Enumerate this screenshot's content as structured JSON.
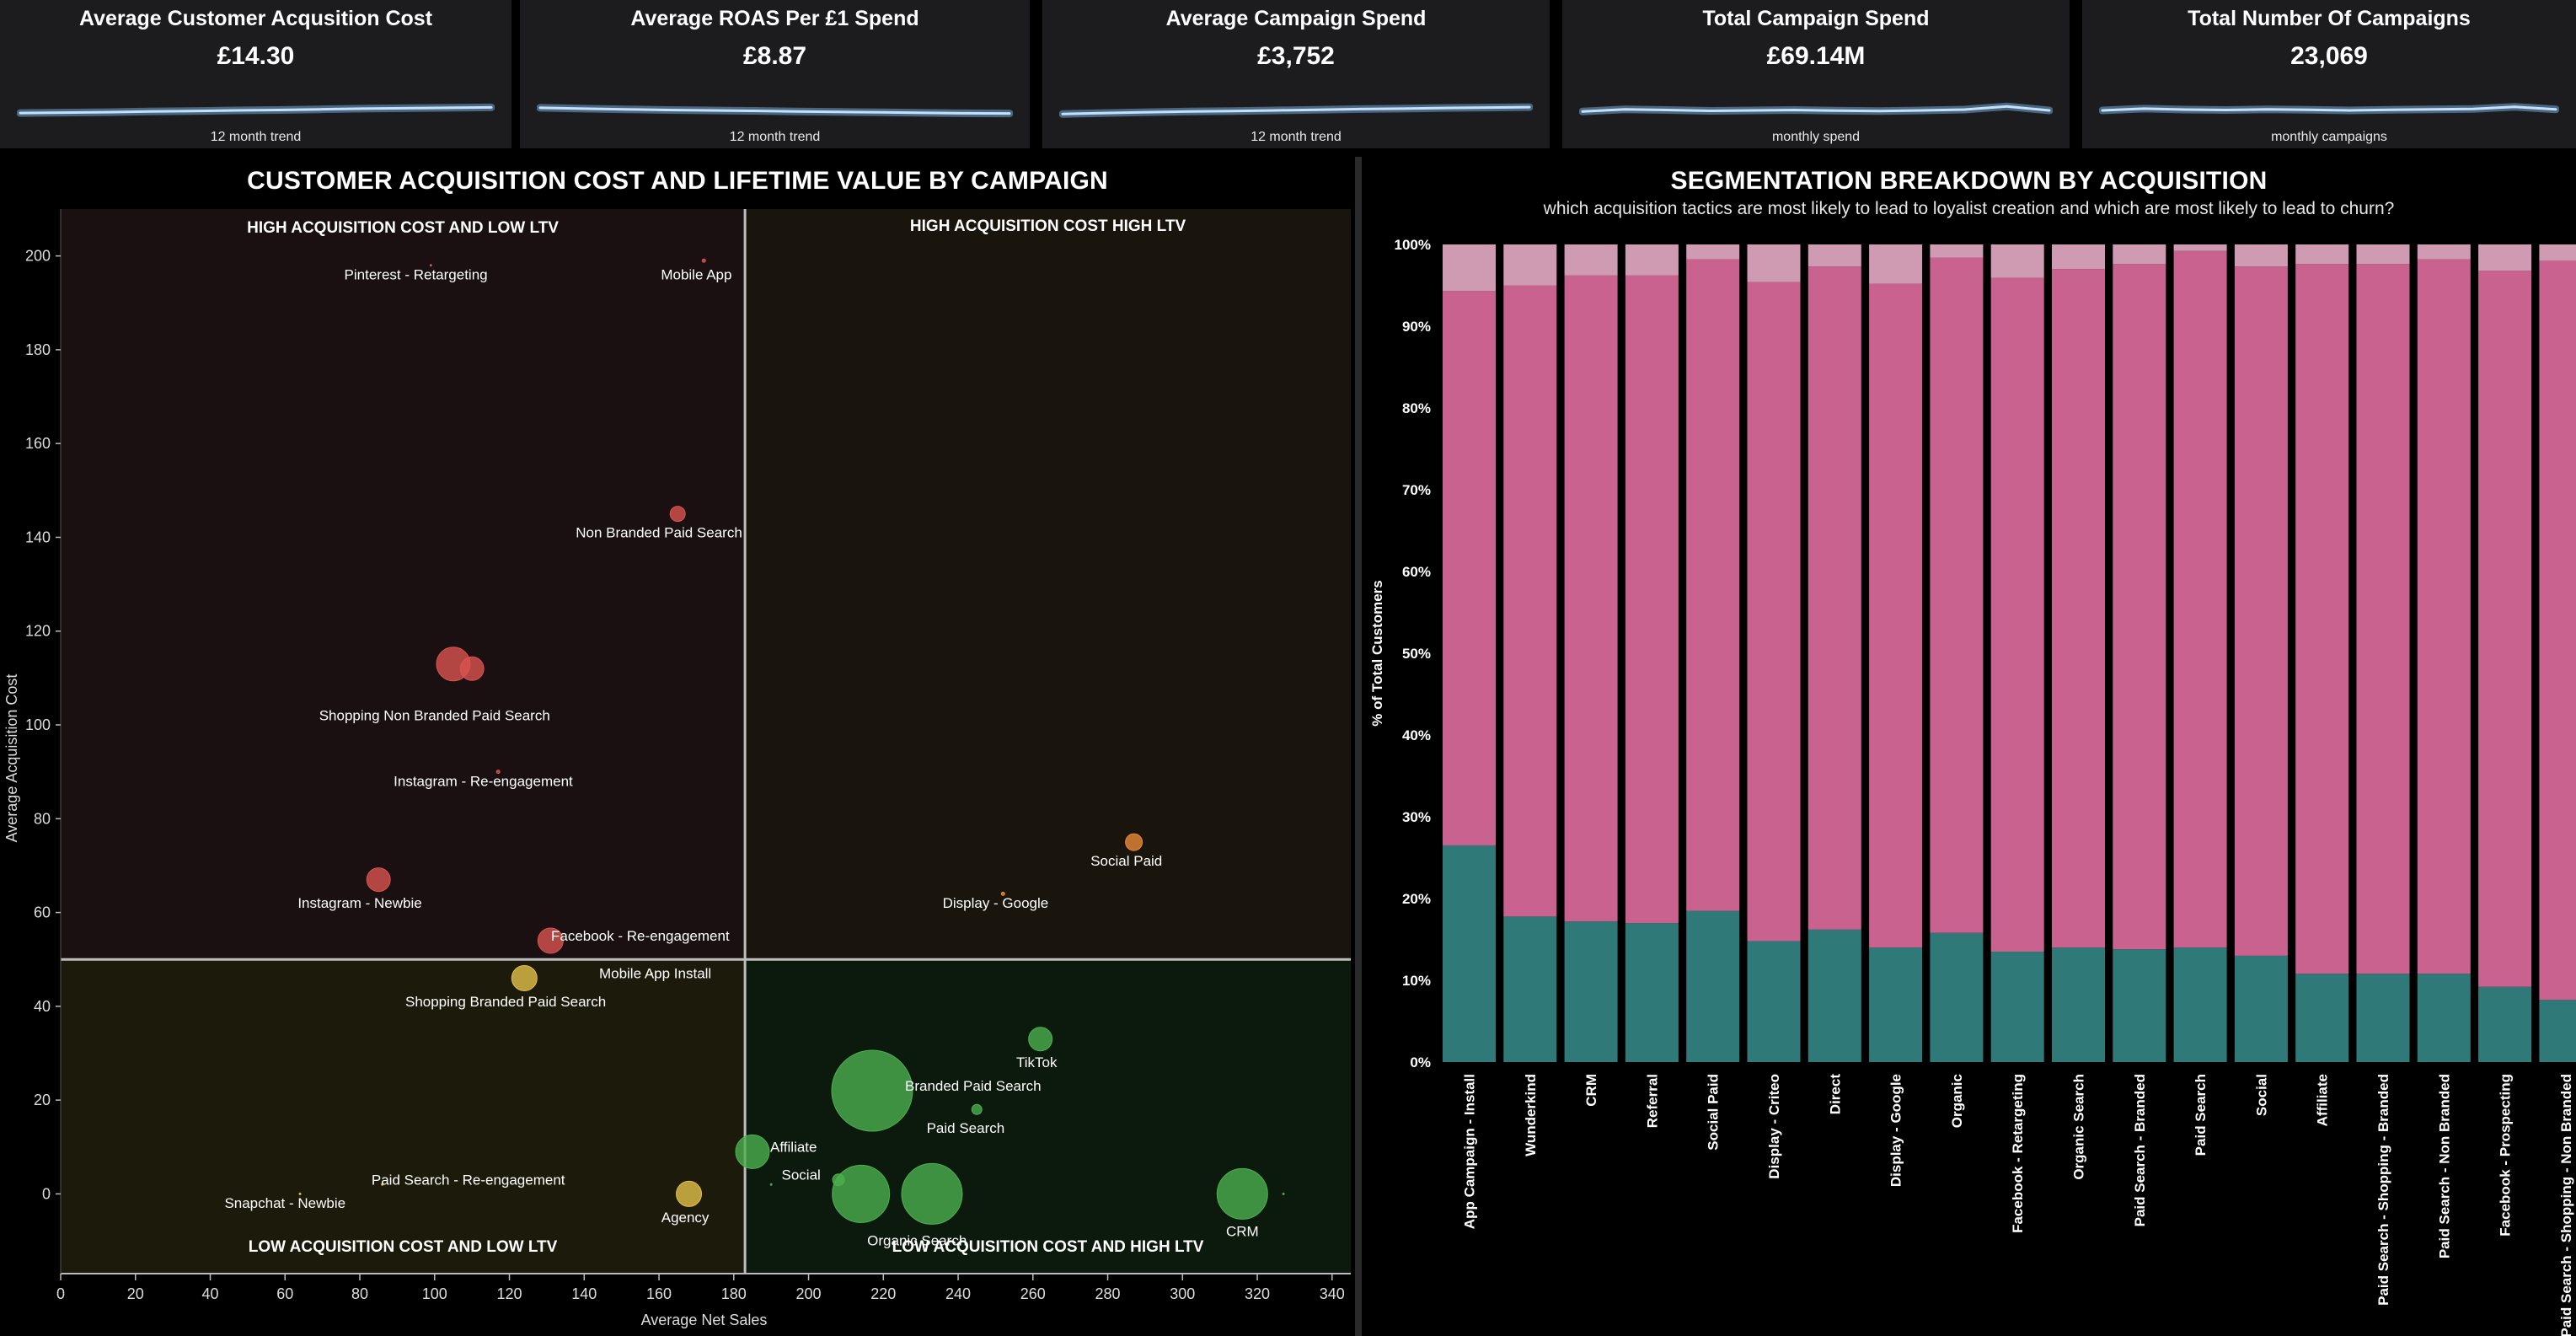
{
  "kpis": [
    {
      "title": "Average Customer Acqusition Cost",
      "value": "£14.30",
      "caption": "12 month trend",
      "trend": [
        0.62,
        0.6,
        0.58,
        0.55,
        0.53,
        0.5,
        0.48,
        0.45,
        0.42,
        0.4,
        0.38,
        0.36
      ]
    },
    {
      "title": "Average ROAS Per £1 Spend",
      "value": "£8.87",
      "caption": "12 month trend",
      "trend": [
        0.38,
        0.42,
        0.45,
        0.48,
        0.5,
        0.52,
        0.55,
        0.57,
        0.59,
        0.61,
        0.63,
        0.64
      ]
    },
    {
      "title": "Average Campaign Spend",
      "value": "£3,752",
      "caption": "12 month trend",
      "trend": [
        0.66,
        0.62,
        0.58,
        0.55,
        0.53,
        0.5,
        0.47,
        0.44,
        0.42,
        0.39,
        0.37,
        0.35
      ]
    },
    {
      "title": "Total Campaign Spend",
      "value": "£69.14M",
      "caption": "monthly spend",
      "trend": [
        0.55,
        0.45,
        0.48,
        0.52,
        0.5,
        0.48,
        0.51,
        0.53,
        0.5,
        0.46,
        0.32,
        0.5
      ]
    },
    {
      "title": "Total Number Of Campaigns",
      "value": "23,069",
      "caption": "monthly campaigns",
      "trend": [
        0.5,
        0.42,
        0.46,
        0.48,
        0.45,
        0.47,
        0.5,
        0.47,
        0.45,
        0.43,
        0.34,
        0.45
      ]
    }
  ],
  "chart_data": [
    {
      "type": "scatter",
      "title": "CUSTOMER ACQUISITION COST AND LIFETIME VALUE BY CAMPAIGN",
      "xlabel": "Average Net Sales",
      "ylabel": "Average Acquisition Cost",
      "xlim": [
        0,
        345
      ],
      "ylim": [
        -17,
        210
      ],
      "xticks": [
        0,
        20,
        40,
        60,
        80,
        100,
        120,
        140,
        160,
        180,
        200,
        220,
        240,
        260,
        280,
        300,
        320,
        340
      ],
      "yticks": [
        0,
        20,
        40,
        60,
        80,
        100,
        120,
        140,
        160,
        180,
        200
      ],
      "divider_x": 183,
      "divider_y": 50,
      "quadrants": {
        "top_left": "HIGH ACQUISITION COST AND LOW LTV",
        "top_right": "HIGH ACQUISITION COST HIGH LTV",
        "bottom_left": "LOW ACQUISITION COST AND LOW LTV",
        "bottom_right": "LOW ACQUISITION COST AND HIGH LTV"
      },
      "quadrant_colors": {
        "top_left": "#1a1012",
        "top_right": "#1a150c",
        "bottom_left": "#1c1a0b",
        "bottom_right": "#0c1a0e"
      },
      "points": [
        {
          "label": "Pinterest - Retargeting",
          "x": 99,
          "y": 198,
          "size": 1,
          "color": "#d9534f",
          "lx": 95,
          "ly": 195
        },
        {
          "label": "Mobile App",
          "x": 172,
          "y": 199,
          "size": 2,
          "color": "#d9534f",
          "lx": 170,
          "ly": 195
        },
        {
          "label": "Non Branded Paid Search",
          "x": 165,
          "y": 145,
          "size": 9,
          "color": "#d9534f",
          "lx": 160,
          "ly": 140
        },
        {
          "label": "Shopping Non Branded Paid Search",
          "x": 105,
          "y": 113,
          "size": 20,
          "color": "#d9534f",
          "lx": 100,
          "ly": 101
        },
        {
          "label": "",
          "x": 110,
          "y": 112,
          "size": 14,
          "color": "#d9534f",
          "lx": 0,
          "ly": 0
        },
        {
          "label": "Instagram - Re-engagement",
          "x": 117,
          "y": 90,
          "size": 2,
          "color": "#d9534f",
          "lx": 113,
          "ly": 87
        },
        {
          "label": "Instagram - Newbie",
          "x": 85,
          "y": 67,
          "size": 14,
          "color": "#d9534f",
          "lx": 80,
          "ly": 61
        },
        {
          "label": "Facebook - Re-engagement",
          "x": 131,
          "y": 54,
          "size": 15,
          "color": "#d9534f",
          "lx": 155,
          "ly": 54
        },
        {
          "label": "Social Paid",
          "x": 287,
          "y": 75,
          "size": 10,
          "color": "#e9883a",
          "lx": 285,
          "ly": 70
        },
        {
          "label": "Display - Google",
          "x": 252,
          "y": 64,
          "size": 2,
          "color": "#e9883a",
          "lx": 250,
          "ly": 61
        },
        {
          "label": "Mobile App Install",
          "x": 158,
          "y": 47,
          "size": 1,
          "color": "#e3c04a",
          "lx": 159,
          "ly": 46
        },
        {
          "label": "Shopping Branded Paid Search",
          "x": 124,
          "y": 46,
          "size": 15,
          "color": "#e3c04a",
          "lx": 119,
          "ly": 40
        },
        {
          "label": "Paid Search - Re-engagement",
          "x": 86,
          "y": 2,
          "size": 1,
          "color": "#e3c04a",
          "lx": 109,
          "ly": 2
        },
        {
          "label": "Snapchat - Newbie",
          "x": 64,
          "y": 0,
          "size": 1,
          "color": "#e3c04a",
          "lx": 60,
          "ly": -3
        },
        {
          "label": "Agency",
          "x": 168,
          "y": 0,
          "size": 15,
          "color": "#e3c04a",
          "lx": 167,
          "ly": -6
        },
        {
          "label": "Affiliate",
          "x": 185,
          "y": 9,
          "size": 20,
          "color": "#4caf50",
          "lx": 196,
          "ly": 9
        },
        {
          "label": "",
          "x": 190,
          "y": 2,
          "size": 1,
          "color": "#4caf50",
          "lx": 0,
          "ly": 0
        },
        {
          "label": "Social",
          "x": 208,
          "y": 3,
          "size": 7,
          "color": "#4caf50",
          "lx": 198,
          "ly": 3
        },
        {
          "label": "Branded Paid Search",
          "x": 217,
          "y": 22,
          "size": 48,
          "color": "#4caf50",
          "lx": 244,
          "ly": 22
        },
        {
          "label": "Paid Search",
          "x": 245,
          "y": 18,
          "size": 6,
          "color": "#4caf50",
          "lx": 242,
          "ly": 13
        },
        {
          "label": "TikTok",
          "x": 262,
          "y": 33,
          "size": 14,
          "color": "#4caf50",
          "lx": 261,
          "ly": 27
        },
        {
          "label": "Organic Search",
          "x": 214,
          "y": 0,
          "size": 34,
          "color": "#4caf50",
          "lx": 229,
          "ly": -11
        },
        {
          "label": "",
          "x": 233,
          "y": 0,
          "size": 36,
          "color": "#4caf50",
          "lx": 0,
          "ly": 0
        },
        {
          "label": "CRM",
          "x": 316,
          "y": 0,
          "size": 30,
          "color": "#4caf50",
          "lx": 316,
          "ly": -9
        },
        {
          "label": "",
          "x": 327,
          "y": 0,
          "size": 1,
          "color": "#4caf50",
          "lx": 0,
          "ly": 0
        }
      ]
    },
    {
      "type": "bar",
      "title": "SEGMENTATION BREAKDOWN BY ACQUISITION",
      "subtitle": "which acquisition tactics are most likely to lead to loyalist creation and which are most likely to lead to churn?",
      "ylabel": "% of Total Customers",
      "ylim": [
        0,
        100
      ],
      "yticks": [
        "0%",
        "10%",
        "20%",
        "30%",
        "40%",
        "50%",
        "60%",
        "70%",
        "80%",
        "90%",
        "100%"
      ],
      "categories": [
        "App Campaign - Install",
        "Wunderkind",
        "CRM",
        "Referral",
        "Social Paid",
        "Display - Criteo",
        "Direct",
        "Display - Google",
        "Organic",
        "Facebook - Retargeting",
        "Organic Search",
        "Paid Search - Branded",
        "Paid Search",
        "Social",
        "Affiliate",
        "Paid Search - Shopping - Branded",
        "Paid Search - Non Branded",
        "Facebook - Prospecting",
        "Paid Search - Shopping - Non Branded"
      ],
      "series": [
        {
          "values": [
            26.5,
            17.8,
            17.2,
            17.0,
            18.5,
            14.8,
            16.2,
            14.0,
            15.8,
            13.5,
            14.0,
            13.8,
            14.0,
            13.0,
            10.8,
            10.8,
            10.8,
            9.2,
            7.6
          ],
          "color": "#2f7a79"
        },
        {
          "values": [
            67.8,
            77.2,
            79.0,
            79.2,
            79.7,
            80.6,
            81.1,
            81.2,
            82.6,
            82.4,
            83.0,
            83.8,
            85.2,
            84.3,
            86.8,
            86.8,
            87.4,
            87.6,
            90.4
          ],
          "color": "#c9628f"
        },
        {
          "values": [
            5.7,
            5.0,
            3.8,
            3.8,
            1.8,
            4.6,
            2.7,
            4.8,
            1.6,
            4.1,
            3.0,
            2.4,
            0.8,
            2.7,
            2.4,
            2.4,
            1.8,
            3.2,
            2.0
          ],
          "color": "#cf9bb2"
        }
      ]
    }
  ]
}
